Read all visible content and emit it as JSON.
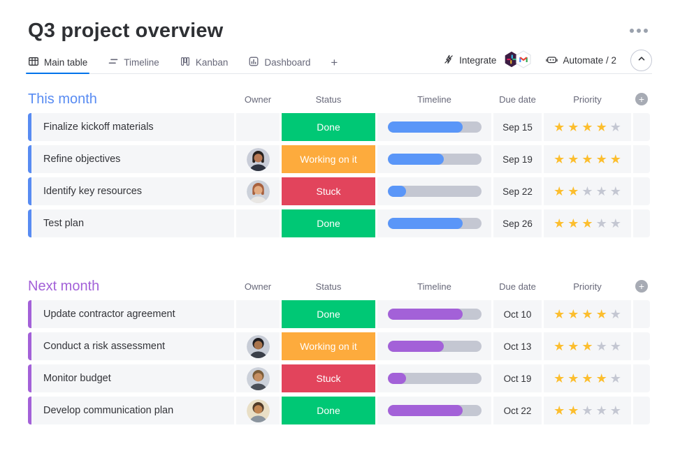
{
  "header": {
    "title": "Q3 project overview"
  },
  "tabs": [
    {
      "label": "Main table",
      "active": true
    },
    {
      "label": "Timeline",
      "active": false
    },
    {
      "label": "Kanban",
      "active": false
    },
    {
      "label": "Dashboard",
      "active": false
    }
  ],
  "add_view_label": "+",
  "add_column_label": "+",
  "toolbar": {
    "integrate_label": "Integrate",
    "automate_label": "Automate / 2",
    "integrations": [
      "slack-icon",
      "gmail-icon"
    ]
  },
  "columns": {
    "owner": "Owner",
    "status": "Status",
    "timeline": "Timeline",
    "due": "Due date",
    "priority": "Priority"
  },
  "groups": [
    {
      "name": "This month",
      "color": "#588bf2",
      "timeline_color": "#5a96f8",
      "rows": [
        {
          "task": "Finalize kickoff materials",
          "owner": null,
          "status": "Done",
          "status_color": "#00c875",
          "timeline_width": "80%",
          "due": "Sep 15",
          "stars": 4
        },
        {
          "task": "Refine objectives",
          "owner": {
            "bg": "#c9cdd8",
            "hair": "#27211f",
            "skin": "#b97a56",
            "shirt": "#2e3340",
            "long": true
          },
          "status": "Working on it",
          "status_color": "#fdab3d",
          "timeline_width": "60%",
          "due": "Sep 19",
          "stars": 5
        },
        {
          "task": "Identify key resources",
          "owner": {
            "bg": "#ccd1da",
            "hair": "#a8613e",
            "skin": "#e3ac83",
            "shirt": "#e9e7e4",
            "long": true
          },
          "status": "Stuck",
          "status_color": "#e2445c",
          "timeline_width": "20%",
          "due": "Sep 22",
          "stars": 2
        },
        {
          "task": "Test plan",
          "owner": null,
          "status": "Done",
          "status_color": "#00c875",
          "timeline_width": "80%",
          "due": "Sep 26",
          "stars": 3
        }
      ]
    },
    {
      "name": "Next month",
      "color": "#a361d8",
      "timeline_color": "#a361d8",
      "rows": [
        {
          "task": "Update contractor agreement",
          "owner": null,
          "status": "Done",
          "status_color": "#00c875",
          "timeline_width": "80%",
          "due": "Oct 10",
          "stars": 4
        },
        {
          "task": "Conduct a risk assessment",
          "owner": {
            "bg": "#c7ccd6",
            "hair": "#1c1c20",
            "skin": "#a9744c",
            "shirt": "#3a3f49",
            "long": false
          },
          "status": "Working on it",
          "status_color": "#fdab3d",
          "timeline_width": "60%",
          "due": "Oct 13",
          "stars": 3
        },
        {
          "task": "Monitor budget",
          "owner": {
            "bg": "#ccd1da",
            "hair": "#7a5c39",
            "skin": "#c58f63",
            "shirt": "#4a4f58",
            "long": false
          },
          "status": "Stuck",
          "status_color": "#e2445c",
          "timeline_width": "20%",
          "due": "Oct 19",
          "stars": 4
        },
        {
          "task": "Develop communication plan",
          "owner": {
            "bg": "#e9dfc6",
            "hair": "#503b29",
            "skin": "#c08552",
            "shirt": "#8a949e",
            "long": false
          },
          "status": "Done",
          "status_color": "#00c875",
          "timeline_width": "80%",
          "due": "Oct 22",
          "stars": 2
        }
      ]
    }
  ],
  "colors": {
    "accent_blue": "#0073ea",
    "group_blue": "#588bf2",
    "group_purple": "#a361d8",
    "status_done": "#00c875",
    "status_working": "#fdab3d",
    "status_stuck": "#e2445c",
    "star_filled": "#fcbe2e",
    "star_empty": "#c4c7d2",
    "cell_bg": "#f5f6f8"
  }
}
